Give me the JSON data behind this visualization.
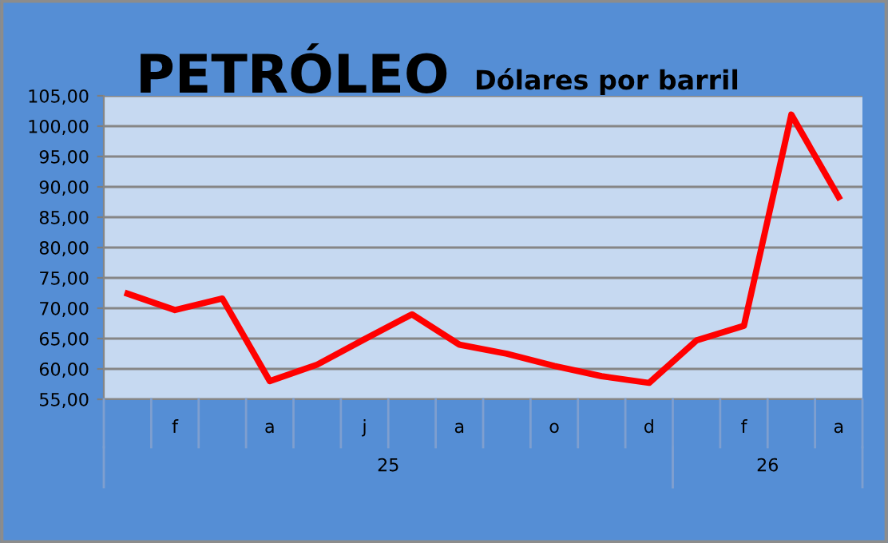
{
  "chart_data": {
    "type": "line",
    "title": "PETRÓLEO",
    "subtitle": "Dólares por barril",
    "categories": [
      null,
      "f",
      null,
      "a",
      null,
      "j",
      null,
      "a",
      null,
      "o",
      null,
      "d",
      null,
      "f",
      null,
      "a"
    ],
    "series": [
      {
        "color": "#ff0000",
        "values": [
          72.4,
          69.7,
          71.6,
          58.0,
          60.7,
          64.9,
          69.0,
          64.0,
          62.5,
          60.5,
          58.8,
          57.7,
          64.7,
          67.1,
          101.9,
          88.3
        ]
      }
    ],
    "annotations": [
      "25",
      "26"
    ],
    "ylim": [
      55,
      105
    ],
    "yticks": [
      {
        "value": 55,
        "label": "55,00"
      },
      {
        "value": 60,
        "label": "60,00"
      },
      {
        "value": 65,
        "label": "65,00"
      },
      {
        "value": 70,
        "label": "70,00"
      },
      {
        "value": 75,
        "label": "75,00"
      },
      {
        "value": 80,
        "label": "80,00"
      },
      {
        "value": 85,
        "label": "85,00"
      },
      {
        "value": 90,
        "label": "90,00"
      },
      {
        "value": 95,
        "label": "95,00"
      },
      {
        "value": 100,
        "label": "100,00"
      },
      {
        "value": 105,
        "label": "105,00"
      }
    ],
    "grid": "y",
    "marker": "none",
    "line_style": "solid",
    "legend": false
  }
}
